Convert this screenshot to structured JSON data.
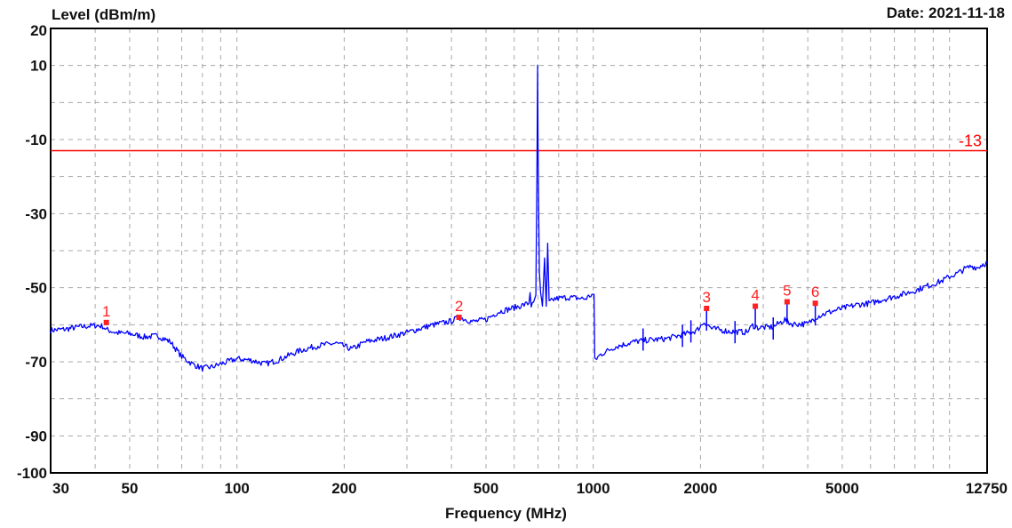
{
  "chart_data": {
    "type": "line",
    "ylabel": "Level (dBm/m)",
    "xlabel": "Frequency (MHz)",
    "date": "Date: 2021-11-18",
    "x_scale": "log",
    "xlim": [
      30,
      12750
    ],
    "ylim": [
      -100,
      20
    ],
    "x_ticks": [
      {
        "value": 30,
        "label": "30"
      },
      {
        "value": 50,
        "label": "50"
      },
      {
        "value": 100,
        "label": "100"
      },
      {
        "value": 200,
        "label": "200"
      },
      {
        "value": 500,
        "label": "500"
      },
      {
        "value": 1000,
        "label": "1000"
      },
      {
        "value": 2000,
        "label": "2000"
      },
      {
        "value": 5000,
        "label": "5000"
      },
      {
        "value": 12750,
        "label": "12750"
      }
    ],
    "y_ticks": [
      {
        "value": 20,
        "label": "20"
      },
      {
        "value": 10,
        "label": "10"
      },
      {
        "value": -10,
        "label": "-10"
      },
      {
        "value": -30,
        "label": "-30"
      },
      {
        "value": -50,
        "label": "-50"
      },
      {
        "value": -70,
        "label": "-70"
      },
      {
        "value": -90,
        "label": "-90"
      },
      {
        "value": -100,
        "label": "-100"
      }
    ],
    "grid": true,
    "limit_line": {
      "value": -13,
      "label": "-13",
      "color": "#ff0000"
    },
    "series": [
      {
        "color": "#0000ff",
        "points": [
          [
            30,
            -61.5
          ],
          [
            33,
            -61.2
          ],
          [
            36,
            -60.6
          ],
          [
            40,
            -60.2
          ],
          [
            42,
            -60.4
          ],
          [
            43,
            -61.3
          ],
          [
            46,
            -62.2
          ],
          [
            50,
            -62.4
          ],
          [
            55,
            -63.3
          ],
          [
            60,
            -63.0
          ],
          [
            65,
            -64.6
          ],
          [
            70,
            -68.6
          ],
          [
            75,
            -70.6
          ],
          [
            80,
            -71.8
          ],
          [
            85,
            -71.4
          ],
          [
            90,
            -70.6
          ],
          [
            100,
            -69.2
          ],
          [
            110,
            -69.6
          ],
          [
            120,
            -70.6
          ],
          [
            130,
            -69.6
          ],
          [
            150,
            -67.0
          ],
          [
            170,
            -65.6
          ],
          [
            190,
            -65.0
          ],
          [
            210,
            -66.6
          ],
          [
            230,
            -64.6
          ],
          [
            260,
            -63.6
          ],
          [
            300,
            -62.1
          ],
          [
            350,
            -60.2
          ],
          [
            400,
            -59.0
          ],
          [
            420,
            -58.0
          ],
          [
            460,
            -59.2
          ],
          [
            500,
            -58.6
          ],
          [
            540,
            -56.6
          ],
          [
            600,
            -55.4
          ],
          [
            640,
            -54.6
          ],
          [
            660,
            -54.2
          ],
          [
            665,
            -51.0
          ],
          [
            670,
            -54.8
          ],
          [
            680,
            -54.5
          ],
          [
            690,
            -52.0
          ],
          [
            695,
            -20.0
          ],
          [
            698,
            10.0
          ],
          [
            700,
            -12.0
          ],
          [
            703,
            -30.0
          ],
          [
            706,
            -46.0
          ],
          [
            712,
            -52.0
          ],
          [
            720,
            -55.0
          ],
          [
            730,
            -42.0
          ],
          [
            738,
            -55.0
          ],
          [
            745,
            -38.0
          ],
          [
            752,
            -54.0
          ],
          [
            780,
            -53.0
          ],
          [
            850,
            -52.6
          ],
          [
            950,
            -53.0
          ],
          [
            985,
            -52.0
          ],
          [
            1005,
            -51.8
          ],
          [
            1010,
            -69.6
          ],
          [
            1050,
            -68.0
          ],
          [
            1150,
            -66.0
          ],
          [
            1300,
            -64.6
          ],
          [
            1400,
            -64.2
          ],
          [
            1600,
            -63.8
          ],
          [
            1800,
            -62.6
          ],
          [
            1950,
            -61.6
          ],
          [
            2050,
            -59.2
          ],
          [
            2150,
            -61.0
          ],
          [
            2400,
            -61.8
          ],
          [
            2700,
            -62.0
          ],
          [
            2800,
            -60.2
          ],
          [
            2900,
            -60.8
          ],
          [
            3200,
            -60.6
          ],
          [
            3450,
            -58.6
          ],
          [
            3600,
            -59.8
          ],
          [
            4000,
            -59.8
          ],
          [
            4200,
            -58.0
          ],
          [
            4300,
            -57.6
          ],
          [
            4600,
            -56.6
          ],
          [
            5000,
            -55.6
          ],
          [
            5500,
            -54.6
          ],
          [
            6000,
            -54.2
          ],
          [
            6500,
            -53.2
          ],
          [
            7000,
            -52.4
          ],
          [
            7500,
            -51.6
          ],
          [
            8000,
            -50.8
          ],
          [
            8500,
            -49.8
          ],
          [
            9000,
            -49.0
          ],
          [
            9500,
            -48.2
          ],
          [
            10000,
            -47.0
          ],
          [
            10500,
            -46.2
          ],
          [
            11000,
            -45.0
          ],
          [
            11500,
            -44.2
          ],
          [
            12000,
            -44.6
          ],
          [
            12400,
            -43.6
          ],
          [
            12750,
            -43.4
          ]
        ]
      }
    ],
    "markers": [
      {
        "label": "1",
        "x": 43,
        "y": -59.4
      },
      {
        "label": "2",
        "x": 420,
        "y": -58.0
      },
      {
        "label": "3",
        "x": 2080,
        "y": -55.6
      },
      {
        "label": "4",
        "x": 2850,
        "y": -55.0
      },
      {
        "label": "5",
        "x": 3500,
        "y": -53.8
      },
      {
        "label": "6",
        "x": 4200,
        "y": -54.2
      }
    ],
    "spikes": [
      {
        "x": 1380,
        "y": -61.0
      },
      {
        "x": 1780,
        "y": -60.0
      },
      {
        "x": 1880,
        "y": -58.8
      },
      {
        "x": 2080,
        "y": -55.6
      },
      {
        "x": 2500,
        "y": -59.0
      },
      {
        "x": 2850,
        "y": -55.0
      },
      {
        "x": 3200,
        "y": -58.0
      },
      {
        "x": 3500,
        "y": -53.8
      },
      {
        "x": 4200,
        "y": -54.2
      }
    ]
  }
}
